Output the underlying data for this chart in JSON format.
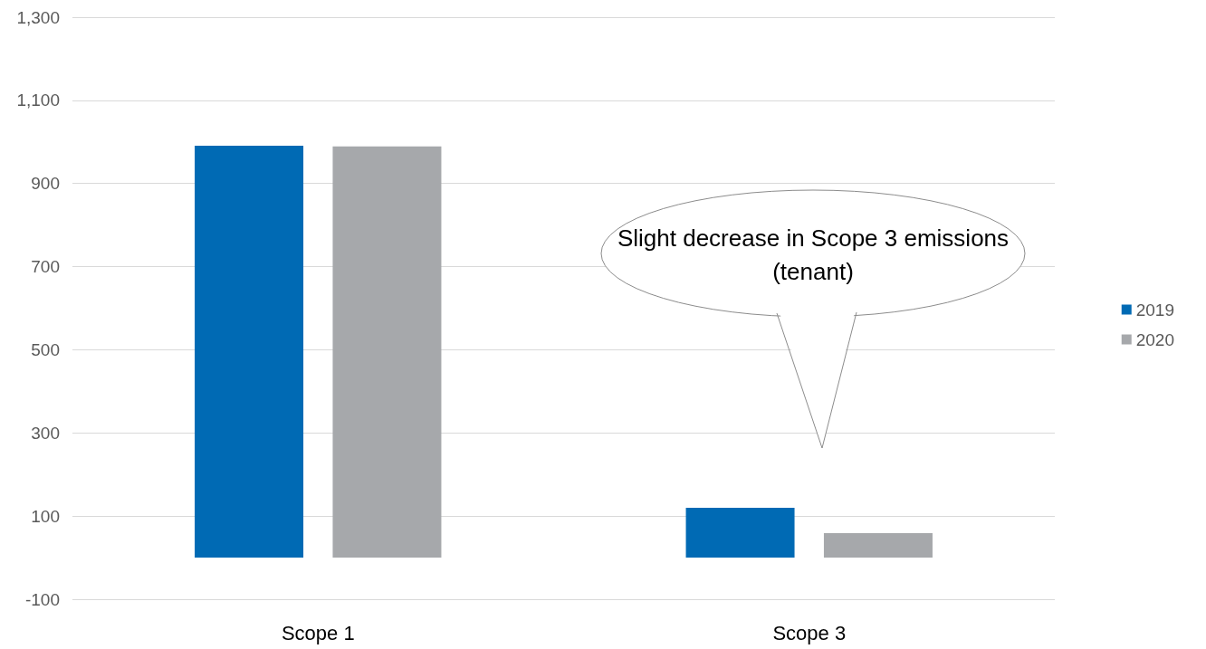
{
  "chart_data": {
    "type": "bar",
    "categories": [
      "Scope 1",
      "Scope 3"
    ],
    "series": [
      {
        "name": "2019",
        "color": "#006ab4",
        "values": [
          991,
          120
        ]
      },
      {
        "name": "2020",
        "color": "#a6a8ab",
        "values": [
          989,
          59
        ]
      }
    ],
    "ylim": [
      -100,
      1300
    ],
    "yticks": [
      -100,
      100,
      300,
      500,
      700,
      900,
      {
        "value": 1100,
        "label": "1,100"
      },
      {
        "value": 1300,
        "label": "1,300"
      }
    ],
    "grid": "y",
    "legend": "right",
    "annotations": [
      "Slight decrease in Scope 3 emissions (tenant)"
    ]
  }
}
